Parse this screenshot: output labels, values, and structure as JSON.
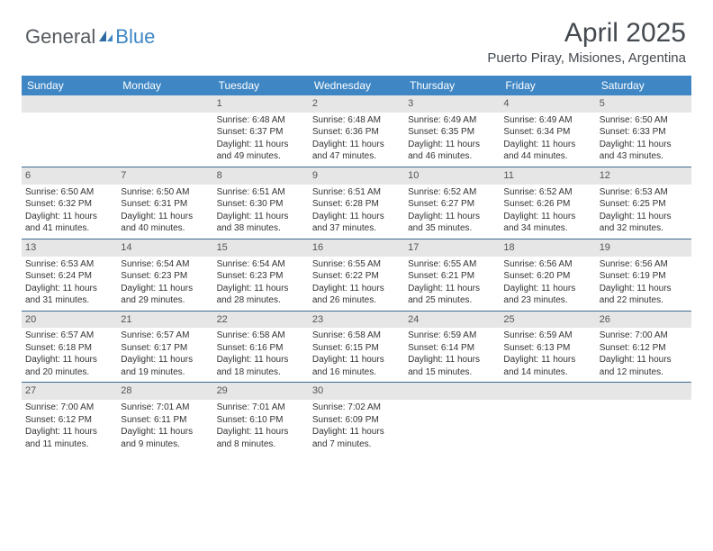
{
  "logo": {
    "general": "General",
    "blue": "Blue"
  },
  "header": {
    "month": "April 2025",
    "location": "Puerto Piray, Misiones, Argentina"
  },
  "colors": {
    "headerBg": "#3e86c4",
    "dayBg": "#e6e6e6",
    "rule": "#3e6a90"
  },
  "dayNames": [
    "Sunday",
    "Monday",
    "Tuesday",
    "Wednesday",
    "Thursday",
    "Friday",
    "Saturday"
  ],
  "startOffset": 2,
  "days": [
    {
      "n": 1,
      "sunrise": "6:48 AM",
      "sunset": "6:37 PM",
      "dl": "11 hours and 49 minutes."
    },
    {
      "n": 2,
      "sunrise": "6:48 AM",
      "sunset": "6:36 PM",
      "dl": "11 hours and 47 minutes."
    },
    {
      "n": 3,
      "sunrise": "6:49 AM",
      "sunset": "6:35 PM",
      "dl": "11 hours and 46 minutes."
    },
    {
      "n": 4,
      "sunrise": "6:49 AM",
      "sunset": "6:34 PM",
      "dl": "11 hours and 44 minutes."
    },
    {
      "n": 5,
      "sunrise": "6:50 AM",
      "sunset": "6:33 PM",
      "dl": "11 hours and 43 minutes."
    },
    {
      "n": 6,
      "sunrise": "6:50 AM",
      "sunset": "6:32 PM",
      "dl": "11 hours and 41 minutes."
    },
    {
      "n": 7,
      "sunrise": "6:50 AM",
      "sunset": "6:31 PM",
      "dl": "11 hours and 40 minutes."
    },
    {
      "n": 8,
      "sunrise": "6:51 AM",
      "sunset": "6:30 PM",
      "dl": "11 hours and 38 minutes."
    },
    {
      "n": 9,
      "sunrise": "6:51 AM",
      "sunset": "6:28 PM",
      "dl": "11 hours and 37 minutes."
    },
    {
      "n": 10,
      "sunrise": "6:52 AM",
      "sunset": "6:27 PM",
      "dl": "11 hours and 35 minutes."
    },
    {
      "n": 11,
      "sunrise": "6:52 AM",
      "sunset": "6:26 PM",
      "dl": "11 hours and 34 minutes."
    },
    {
      "n": 12,
      "sunrise": "6:53 AM",
      "sunset": "6:25 PM",
      "dl": "11 hours and 32 minutes."
    },
    {
      "n": 13,
      "sunrise": "6:53 AM",
      "sunset": "6:24 PM",
      "dl": "11 hours and 31 minutes."
    },
    {
      "n": 14,
      "sunrise": "6:54 AM",
      "sunset": "6:23 PM",
      "dl": "11 hours and 29 minutes."
    },
    {
      "n": 15,
      "sunrise": "6:54 AM",
      "sunset": "6:23 PM",
      "dl": "11 hours and 28 minutes."
    },
    {
      "n": 16,
      "sunrise": "6:55 AM",
      "sunset": "6:22 PM",
      "dl": "11 hours and 26 minutes."
    },
    {
      "n": 17,
      "sunrise": "6:55 AM",
      "sunset": "6:21 PM",
      "dl": "11 hours and 25 minutes."
    },
    {
      "n": 18,
      "sunrise": "6:56 AM",
      "sunset": "6:20 PM",
      "dl": "11 hours and 23 minutes."
    },
    {
      "n": 19,
      "sunrise": "6:56 AM",
      "sunset": "6:19 PM",
      "dl": "11 hours and 22 minutes."
    },
    {
      "n": 20,
      "sunrise": "6:57 AM",
      "sunset": "6:18 PM",
      "dl": "11 hours and 20 minutes."
    },
    {
      "n": 21,
      "sunrise": "6:57 AM",
      "sunset": "6:17 PM",
      "dl": "11 hours and 19 minutes."
    },
    {
      "n": 22,
      "sunrise": "6:58 AM",
      "sunset": "6:16 PM",
      "dl": "11 hours and 18 minutes."
    },
    {
      "n": 23,
      "sunrise": "6:58 AM",
      "sunset": "6:15 PM",
      "dl": "11 hours and 16 minutes."
    },
    {
      "n": 24,
      "sunrise": "6:59 AM",
      "sunset": "6:14 PM",
      "dl": "11 hours and 15 minutes."
    },
    {
      "n": 25,
      "sunrise": "6:59 AM",
      "sunset": "6:13 PM",
      "dl": "11 hours and 14 minutes."
    },
    {
      "n": 26,
      "sunrise": "7:00 AM",
      "sunset": "6:12 PM",
      "dl": "11 hours and 12 minutes."
    },
    {
      "n": 27,
      "sunrise": "7:00 AM",
      "sunset": "6:12 PM",
      "dl": "11 hours and 11 minutes."
    },
    {
      "n": 28,
      "sunrise": "7:01 AM",
      "sunset": "6:11 PM",
      "dl": "11 hours and 9 minutes."
    },
    {
      "n": 29,
      "sunrise": "7:01 AM",
      "sunset": "6:10 PM",
      "dl": "11 hours and 8 minutes."
    },
    {
      "n": 30,
      "sunrise": "7:02 AM",
      "sunset": "6:09 PM",
      "dl": "11 hours and 7 minutes."
    }
  ],
  "labels": {
    "sunrise": "Sunrise: ",
    "sunset": "Sunset: ",
    "daylight": "Daylight: "
  }
}
